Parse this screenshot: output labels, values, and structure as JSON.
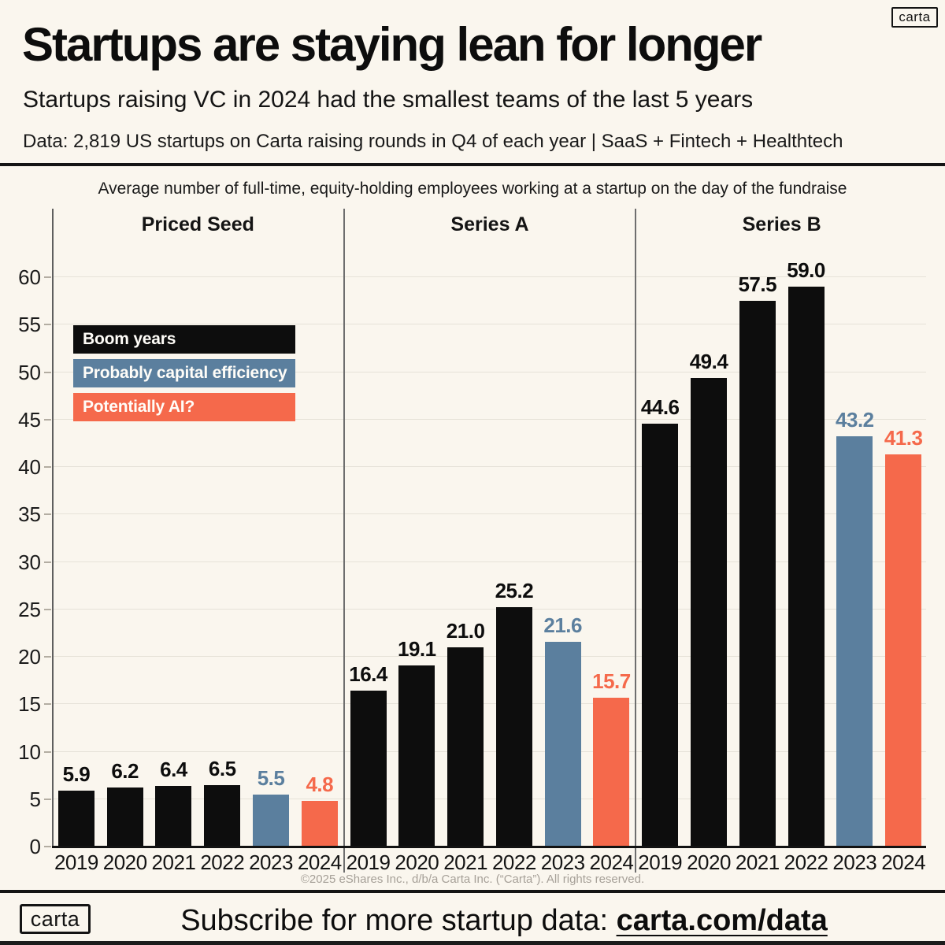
{
  "page": {
    "brand": "carta",
    "title": "Startups are staying lean for longer",
    "subtitle": "Startups raising VC in 2024 had the smallest teams of the last 5 years",
    "data_note": "Data: 2,819 US startups on Carta raising rounds in Q4 of each year | SaaS + Fintech + Healthtech",
    "copyright": "©2025 eShares Inc., d/b/a Carta Inc. (“Carta”). All rights reserved.",
    "cta_prefix": "Subscribe for more startup data: ",
    "cta_link": "carta.com/data"
  },
  "colors": {
    "background": "#faf6ee",
    "boom": "#0d0d0d",
    "efficiency": "#5b7f9e",
    "ai": "#f5694b",
    "gridline": "#e6e2d8",
    "footer_gray": "#a6a098"
  },
  "legend": [
    {
      "label": "Boom years",
      "color_key": "boom"
    },
    {
      "label": "Probably capital efficiency",
      "color_key": "efficiency"
    },
    {
      "label": "Potentially AI?",
      "color_key": "ai"
    }
  ],
  "chart_data": {
    "type": "bar",
    "title": "Average number of full-time, equity-holding employees working at a startup on the day of the fundraise",
    "categories": [
      "2019",
      "2020",
      "2021",
      "2022",
      "2023",
      "2024"
    ],
    "category_color_keys": [
      "boom",
      "boom",
      "boom",
      "boom",
      "efficiency",
      "ai"
    ],
    "series": [
      {
        "name": "Priced Seed",
        "values": [
          5.9,
          6.2,
          6.4,
          6.5,
          5.5,
          4.8
        ]
      },
      {
        "name": "Series A",
        "values": [
          16.4,
          19.1,
          21.0,
          25.2,
          21.6,
          15.7
        ]
      },
      {
        "name": "Series B",
        "values": [
          44.6,
          49.4,
          57.5,
          59.0,
          43.2,
          41.3
        ]
      }
    ],
    "value_label_decimals": 1,
    "ylim": [
      0,
      60
    ],
    "yticks": [
      0,
      5,
      10,
      15,
      20,
      25,
      30,
      35,
      40,
      45,
      50,
      55,
      60
    ],
    "grid": true,
    "legend_position": "upper-left",
    "xlabel": "",
    "ylabel": ""
  }
}
